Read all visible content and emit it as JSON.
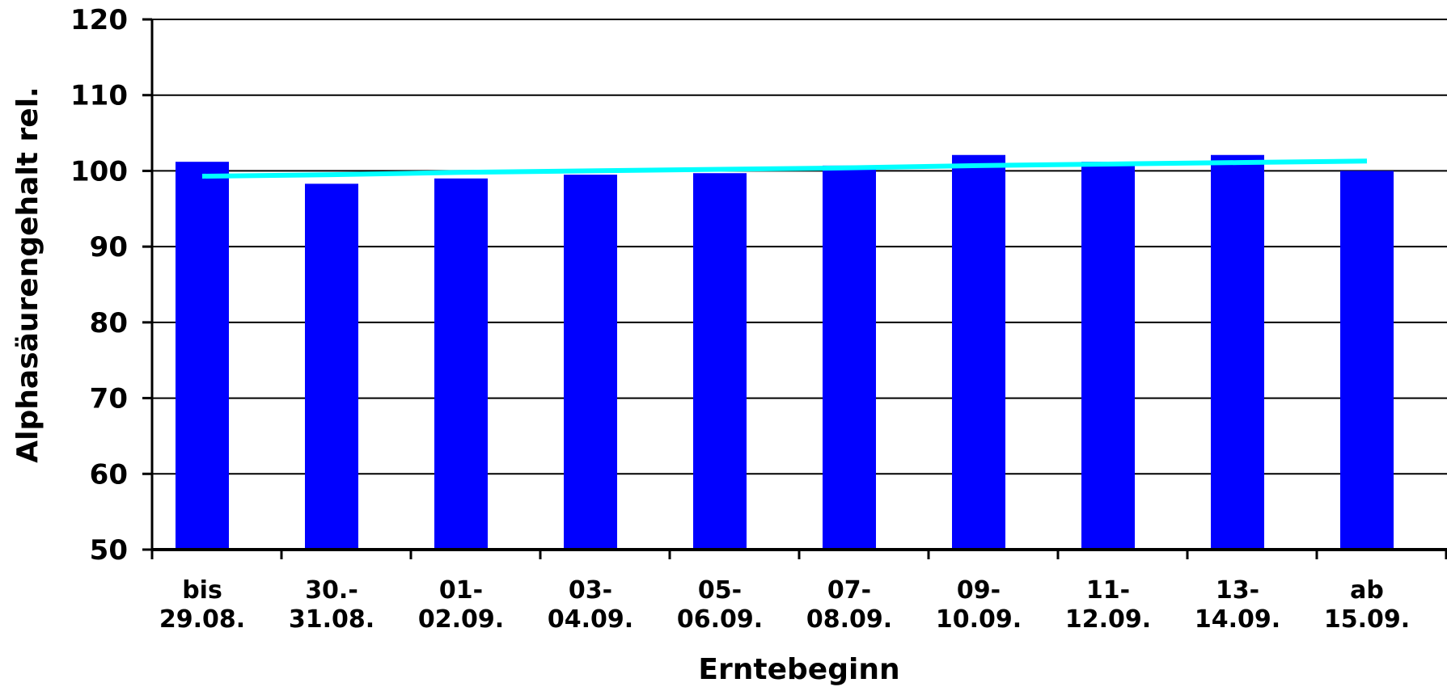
{
  "chart_data": {
    "type": "bar",
    "xlabel": "Erntebeginn",
    "ylabel": "Alphasäurengehalt rel.",
    "ylim": [
      50,
      120
    ],
    "yticks": [
      "50",
      "60",
      "70",
      "80",
      "90",
      "100",
      "110",
      "120"
    ],
    "ytick_values": [
      50,
      60,
      70,
      80,
      90,
      100,
      110,
      120
    ],
    "grid": true,
    "categories": [
      [
        "bis",
        "29.08."
      ],
      [
        "30.-",
        "31.08."
      ],
      [
        "01-",
        "02.09."
      ],
      [
        "03-",
        "04.09."
      ],
      [
        "05-",
        "06.09."
      ],
      [
        "07-",
        "08.09."
      ],
      [
        "09-",
        "10.09."
      ],
      [
        "11-",
        "12.09."
      ],
      [
        "13-",
        "14.09."
      ],
      [
        "ab",
        "15.09."
      ]
    ],
    "series": [
      {
        "type": "bar",
        "color": "#0000ff",
        "values": [
          101.2,
          98.3,
          99.0,
          99.5,
          99.7,
          100.7,
          102.1,
          101.2,
          102.1,
          100.0
        ]
      },
      {
        "type": "line",
        "color": "#00ffff",
        "values": [
          99.3,
          99.5,
          99.8,
          100.0,
          100.2,
          100.4,
          100.7,
          100.9,
          101.1,
          101.3
        ]
      }
    ]
  }
}
